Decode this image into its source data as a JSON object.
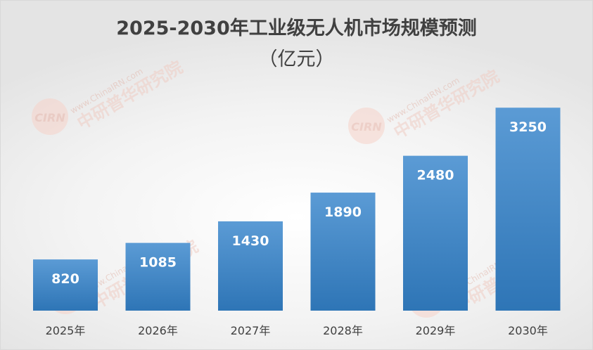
{
  "chart_data": {
    "type": "bar",
    "title": "2025-2030年工业级无人机市场规模预测",
    "subtitle": "（亿元）",
    "categories": [
      "2025年",
      "2026年",
      "2027年",
      "2028年",
      "2029年",
      "2030年"
    ],
    "values": [
      820,
      1085,
      1430,
      1890,
      2480,
      3250
    ],
    "data_labels": [
      "820",
      "1085",
      "1430",
      "1890",
      "2480",
      "3250"
    ],
    "ylim": [
      0,
      3500
    ],
    "grid": false,
    "legend": "none",
    "colors": {
      "bar_top": "#5b9bd5",
      "bar_bottom": "#2e75b6",
      "label": "#ffffff",
      "axis_text": "#404040"
    }
  },
  "watermark": {
    "text_en": "www.ChinaIRN.com",
    "text_cn": "中研普华研究院",
    "logo": "CIRN"
  }
}
